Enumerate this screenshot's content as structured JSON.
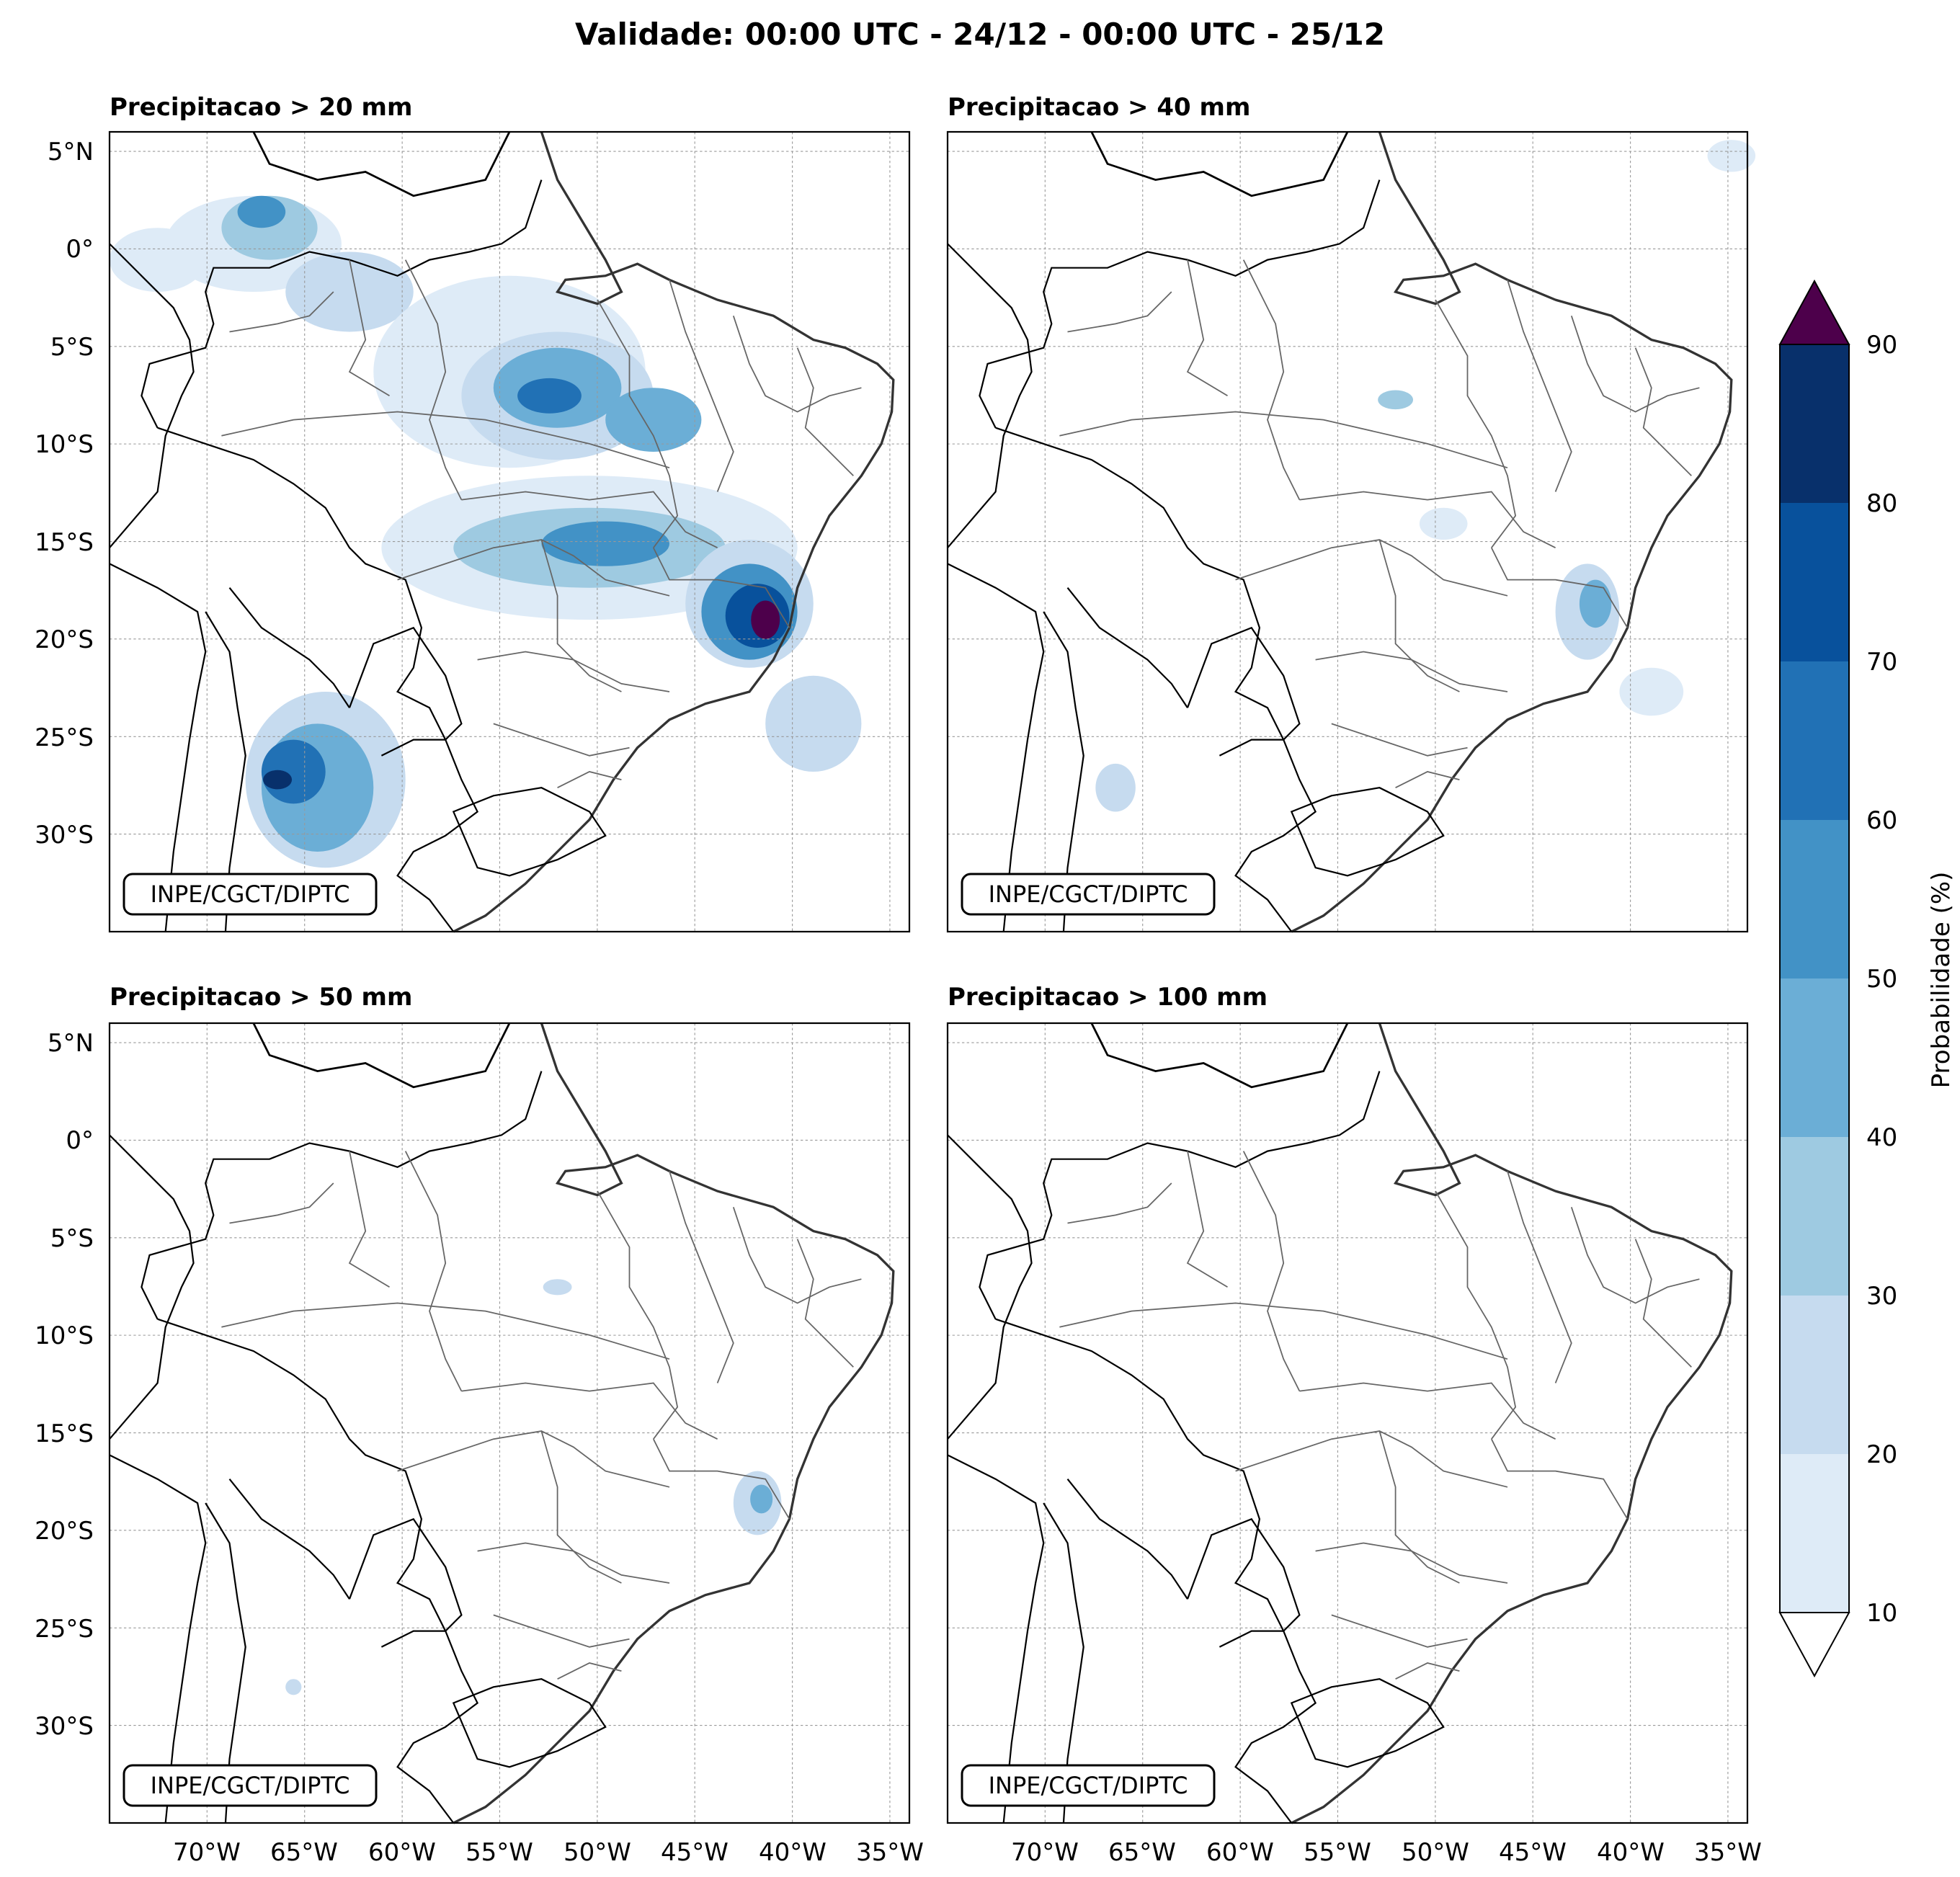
{
  "title": "Validade: 00:00 UTC - 24/12 - 00:00 UTC - 25/12",
  "panels": [
    {
      "id": "p20",
      "title": "Precipitacao > 20 mm",
      "watermark": "INPE/CGCT/DIPTC"
    },
    {
      "id": "p40",
      "title": "Precipitacao > 40 mm",
      "watermark": "INPE/CGCT/DIPTC"
    },
    {
      "id": "p50",
      "title": "Precipitacao > 50 mm",
      "watermark": "INPE/CGCT/DIPTC"
    },
    {
      "id": "p100",
      "title": "Precipitacao > 100 mm",
      "watermark": "INPE/CGCT/DIPTC"
    }
  ],
  "lat_ticks": [
    "5°N",
    "0°",
    "5°S",
    "10°S",
    "15°S",
    "20°S",
    "25°S",
    "30°S"
  ],
  "lon_ticks": [
    "70°W",
    "65°W",
    "60°W",
    "55°W",
    "50°W",
    "45°W",
    "40°W",
    "35°W"
  ],
  "colorbar": {
    "label": "Probabilidade (%)",
    "ticks": [
      "10",
      "20",
      "30",
      "40",
      "50",
      "60",
      "70",
      "80",
      "90"
    ],
    "colors": [
      "#deebf7",
      "#c6dbef",
      "#9ecae1",
      "#6baed6",
      "#4292c6",
      "#2171b5",
      "#08519c",
      "#08306b"
    ],
    "over_color": "#4d004b",
    "under_color": "#ffffff"
  },
  "map_extent": {
    "lon_min": -75,
    "lon_max": -34,
    "lat_min": -35,
    "lat_max": 6
  }
}
